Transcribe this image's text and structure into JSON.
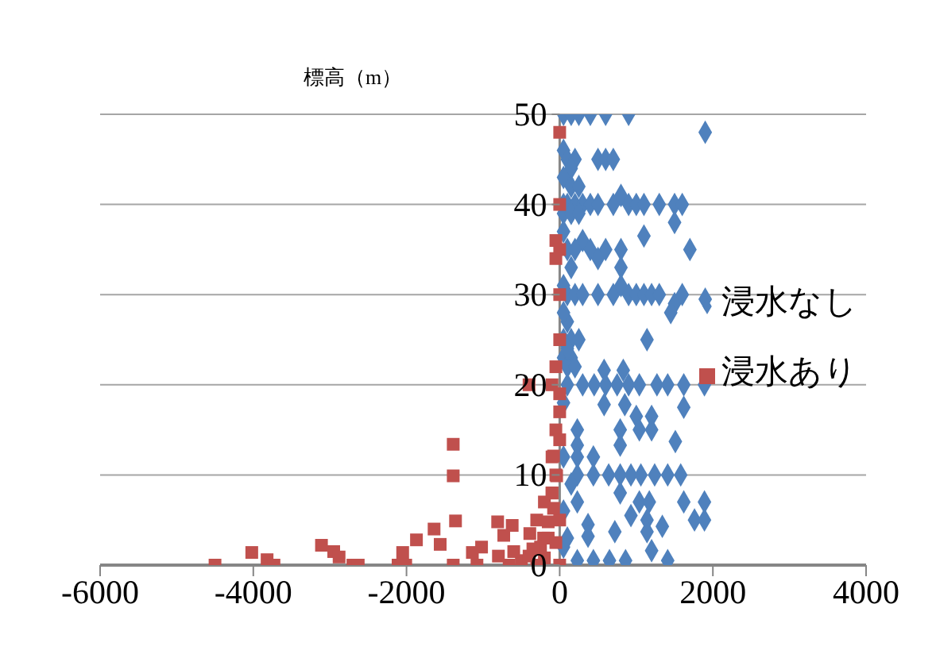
{
  "chart_data": {
    "type": "scatter",
    "ylabel": "標高（m）",
    "xlim": [
      -6000,
      4000
    ],
    "xticks": [
      -6000,
      -4000,
      -2000,
      0,
      2000,
      4000
    ],
    "ylim": [
      0,
      50
    ],
    "yticks": [
      0,
      10,
      20,
      30,
      40,
      50
    ],
    "grid": "y",
    "legend": "right",
    "series": [
      {
        "name": "浸水なし",
        "color": "#4f81bd",
        "marker": "diamond",
        "x": [
          50,
          150,
          250,
          400,
          600,
          900,
          1900,
          50,
          100,
          200,
          150,
          500,
          600,
          700,
          50,
          150,
          250,
          50,
          100,
          200,
          300,
          400,
          500,
          700,
          800,
          900,
          1000,
          1100,
          1300,
          1500,
          1600,
          1500,
          50,
          150,
          250,
          300,
          1100,
          100,
          200,
          400,
          600,
          800,
          1700,
          500,
          150,
          800,
          50,
          100,
          200,
          300,
          500,
          700,
          800,
          900,
          1000,
          1100,
          1200,
          1300,
          1500,
          1600,
          1900,
          1450,
          100,
          50,
          150,
          250,
          1140,
          50,
          150,
          100,
          200,
          580,
          830,
          100,
          300,
          450,
          600,
          750,
          900,
          1040,
          1270,
          1410,
          1620,
          1890,
          580,
          850,
          1620,
          1000,
          1200,
          230,
          790,
          1040,
          1200,
          1510,
          230,
          790,
          440,
          230,
          230,
          440,
          640,
          790,
          930,
          1060,
          1240,
          1410,
          1580,
          790,
          1040,
          1170,
          1620,
          1890,
          230,
          930,
          1140,
          1760,
          1890,
          370,
          720,
          1140,
          1340,
          370,
          1200,
          1410,
          230,
          440,
          650,
          860,
          50,
          50,
          50,
          50,
          50,
          100,
          150,
          100,
          50
        ],
        "values": [
          50,
          50,
          50,
          50,
          50,
          50,
          48,
          46,
          45,
          45,
          44,
          45,
          45,
          45,
          43,
          42,
          42,
          40,
          40,
          40,
          40,
          40,
          40,
          40,
          41,
          40,
          40,
          40,
          40,
          40,
          40,
          38,
          39,
          39,
          39,
          36,
          36.5,
          35,
          35,
          35,
          35,
          35,
          35,
          34,
          33,
          33,
          31,
          30,
          30,
          30,
          30,
          30,
          31,
          30,
          30,
          30,
          30,
          30,
          29,
          30,
          29.5,
          28,
          27,
          25,
          25,
          25,
          25,
          23,
          23,
          22,
          22,
          21.6,
          21.6,
          20,
          20,
          20,
          20,
          20,
          20,
          20,
          20,
          20,
          20,
          20,
          17.8,
          17.8,
          17.5,
          16.5,
          16.5,
          15,
          15,
          15,
          15,
          13.7,
          13.3,
          13.3,
          12,
          12,
          10,
          10,
          10,
          10,
          10,
          10,
          10,
          10,
          10,
          8,
          7,
          7,
          7,
          7,
          7,
          5.5,
          5,
          5,
          5,
          4.5,
          3.7,
          3.7,
          4.3,
          3.2,
          1.6,
          0.5,
          0.5,
          0.5,
          0.5,
          0.5,
          2,
          6,
          12,
          18,
          28,
          3,
          9,
          24,
          37
        ]
      },
      {
        "name": "浸水あり",
        "color": "#c0504d",
        "marker": "square",
        "x": [
          0,
          0,
          -50,
          0,
          -50,
          0,
          0,
          -100,
          0,
          -400,
          -50,
          -100,
          -50,
          -100,
          -200,
          -300,
          0,
          -1390,
          -1390,
          -1360,
          -1640,
          -1560,
          -1870,
          -2050,
          -2110,
          -2010,
          -4500,
          -4020,
          -3820,
          -3730,
          -3110,
          -2950,
          -2880,
          -2700,
          -2630,
          -1390,
          -1080,
          -1140,
          -1020,
          -810,
          -620,
          -730,
          -390,
          -210,
          -150,
          -80,
          -100,
          -40,
          -80,
          0,
          -660,
          -500,
          -400,
          -300,
          -200,
          0,
          -600,
          -800,
          -250,
          -150,
          -50,
          -350,
          0,
          -50
        ],
        "values": [
          48,
          40,
          36,
          35,
          34,
          30,
          25,
          20,
          19,
          20,
          15,
          12,
          10,
          8,
          7,
          5,
          5,
          13.4,
          9.9,
          4.9,
          4,
          2.3,
          2.8,
          1.4,
          0,
          0,
          0,
          1.4,
          0.6,
          0,
          2.2,
          1.5,
          0.9,
          0,
          0,
          0,
          0,
          1.4,
          2,
          4.8,
          4.4,
          3.3,
          3.5,
          3,
          4.8,
          6.3,
          8,
          9.9,
          12.1,
          13.9,
          0,
          0.5,
          1,
          0,
          0.8,
          0,
          1.5,
          1,
          2,
          3,
          2.5,
          1.8,
          17,
          22
        ]
      }
    ]
  }
}
